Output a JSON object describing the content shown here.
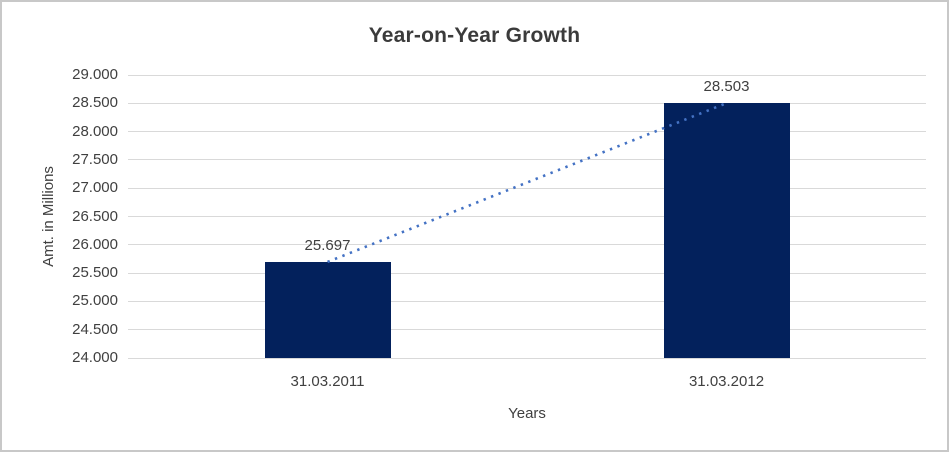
{
  "window": {
    "background": "#FFFFFF",
    "border_color": "#C8C8C8"
  },
  "chart_data": {
    "type": "bar",
    "title": "Year-on-Year Growth",
    "xlabel": "Years",
    "ylabel": "Amt. in Millions",
    "categories": [
      "31.03.2011",
      "31.03.2012"
    ],
    "values": [
      25697,
      28503
    ],
    "value_labels": [
      "25.697",
      "28.503"
    ],
    "ylim": [
      24000,
      29000
    ],
    "ytick_step": 500,
    "ytick_labels": [
      "24.000",
      "24.500",
      "25.000",
      "25.500",
      "26.000",
      "26.500",
      "27.000",
      "27.500",
      "28.000",
      "28.500",
      "29.000"
    ],
    "grid": true,
    "legend": "none",
    "bar_color": "#03215C",
    "gridline_color": "#D9D9D9",
    "text_color": "#404040",
    "title_color": "#3B3B3B",
    "trendline": {
      "type": "linear",
      "style": "dotted",
      "color": "#4472C4"
    }
  }
}
